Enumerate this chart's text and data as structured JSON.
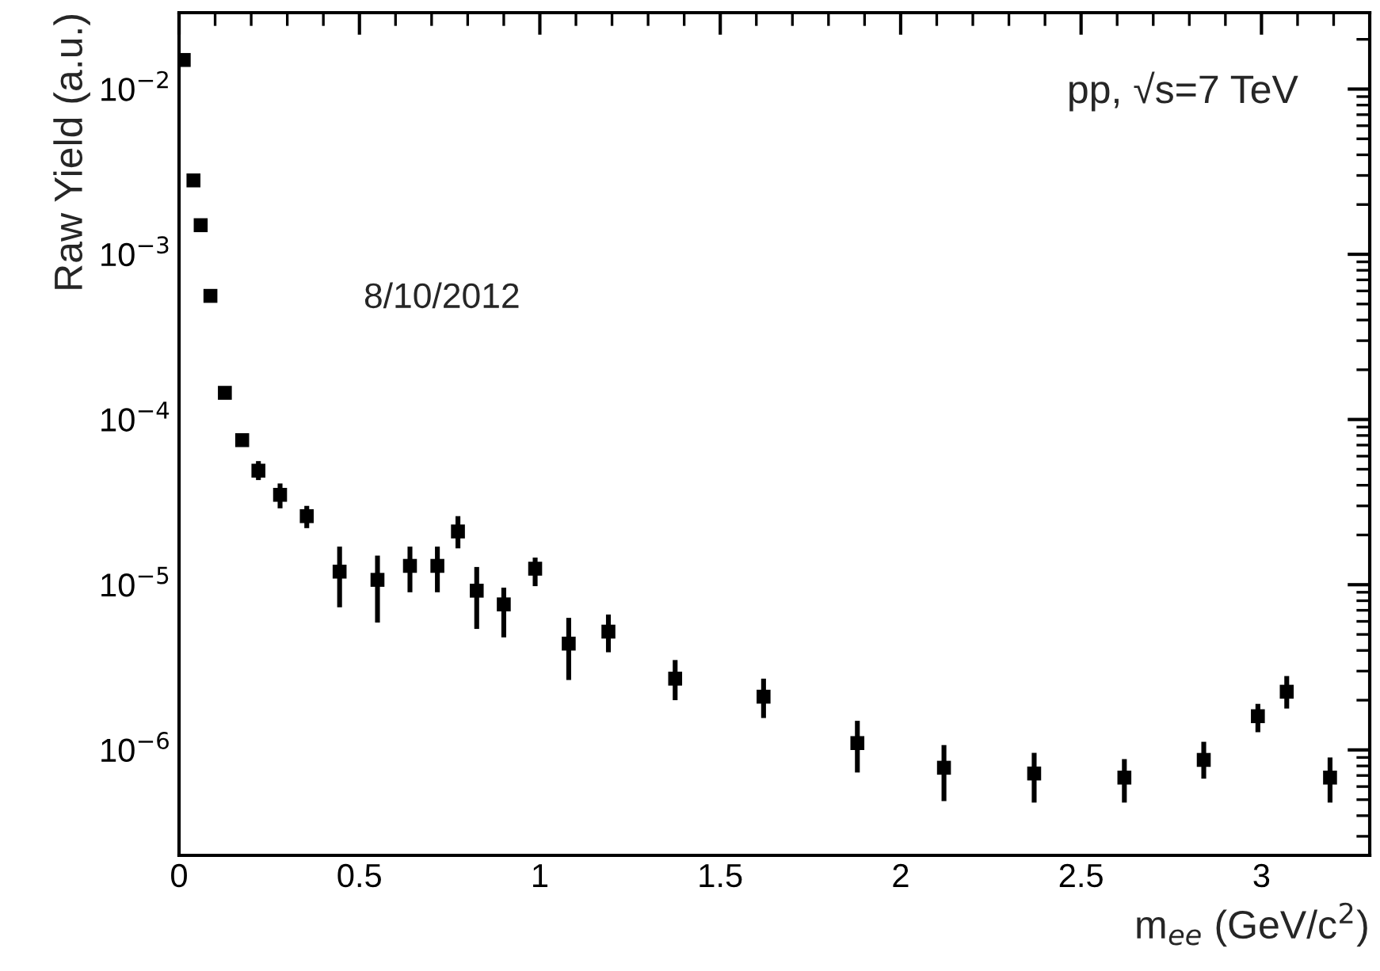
{
  "chart_data": {
    "type": "scatter",
    "xlabel": "m$_{ee}$ (GeV/c$^{2}$)",
    "ylabel": "Raw Yield (a.u.)",
    "annotations": [
      "pp, √s=7 TeV",
      "8/10/2012"
    ],
    "x": [
      0.013,
      0.04,
      0.06,
      0.087,
      0.127,
      0.175,
      0.22,
      0.28,
      0.354,
      0.445,
      0.55,
      0.64,
      0.716,
      0.773,
      0.825,
      0.9,
      0.987,
      1.08,
      1.19,
      1.375,
      1.62,
      1.88,
      2.12,
      2.37,
      2.62,
      2.84,
      2.99,
      3.07,
      3.19
    ],
    "series": [
      {
        "color": "#000000",
        "values": [
          0.015,
          0.0028,
          0.0015,
          0.00056,
          0.000145,
          7.5e-05,
          4.9e-05,
          3.5e-05,
          2.6e-05,
          1.2e-05,
          1.07e-05,
          1.3e-05,
          1.3e-05,
          2.1e-05,
          9.2e-06,
          7.6e-06,
          1.25e-05,
          4.4e-06,
          5.2e-06,
          2.7e-06,
          2.1e-06,
          1.1e-06,
          7.8e-07,
          7.2e-07,
          6.8e-07,
          8.7e-07,
          1.6e-06,
          2.25e-06,
          6.8e-07
        ],
        "errors": [
          null,
          null,
          null,
          null,
          null,
          null,
          [
            4.3e-05,
            5.6e-05
          ],
          [
            2.9e-05,
            4.1e-05
          ],
          [
            2.2e-05,
            3e-05
          ],
          [
            7.3e-06,
            1.7e-05
          ],
          [
            5.9e-06,
            1.5e-05
          ],
          [
            9e-06,
            1.7e-05
          ],
          [
            9e-06,
            1.7e-05
          ],
          [
            1.66e-05,
            2.6e-05
          ],
          [
            5.4e-06,
            1.28e-05
          ],
          [
            4.8e-06,
            9.6e-06
          ],
          [
            9.8e-06,
            1.46e-05
          ],
          [
            2.65e-06,
            6.3e-06
          ],
          [
            3.9e-06,
            6.6e-06
          ],
          [
            2e-06,
            3.5e-06
          ],
          [
            1.56e-06,
            2.7e-06
          ],
          [
            7.3e-07,
            1.5e-06
          ],
          [
            4.9e-07,
            1.07e-06
          ],
          [
            4.8e-07,
            9.6e-07
          ],
          [
            4.8e-07,
            8.8e-07
          ],
          [
            6.7e-07,
            1.12e-06
          ],
          [
            1.28e-06,
            1.9e-06
          ],
          [
            1.78e-06,
            2.8e-06
          ],
          [
            4.8e-07,
            9e-07
          ]
        ]
      }
    ],
    "xlim": [
      0,
      3.3
    ],
    "xticks": [
      0,
      0.5,
      1,
      1.5,
      2,
      2.5,
      3
    ],
    "ylim": [
      2.3e-07,
      0.029
    ],
    "log": "y",
    "yticks": [
      {
        "value": 1e-06,
        "label": "10$^{−6}$"
      },
      {
        "value": 1e-05,
        "label": "10$^{−5}$"
      },
      {
        "value": 0.0001,
        "label": "10$^{−4}$"
      },
      {
        "value": 0.001,
        "label": "10$^{−3}$"
      },
      {
        "value": 0.01,
        "label": "10$^{−2}$"
      }
    ],
    "marker": "square",
    "grid": false,
    "legend": false
  }
}
